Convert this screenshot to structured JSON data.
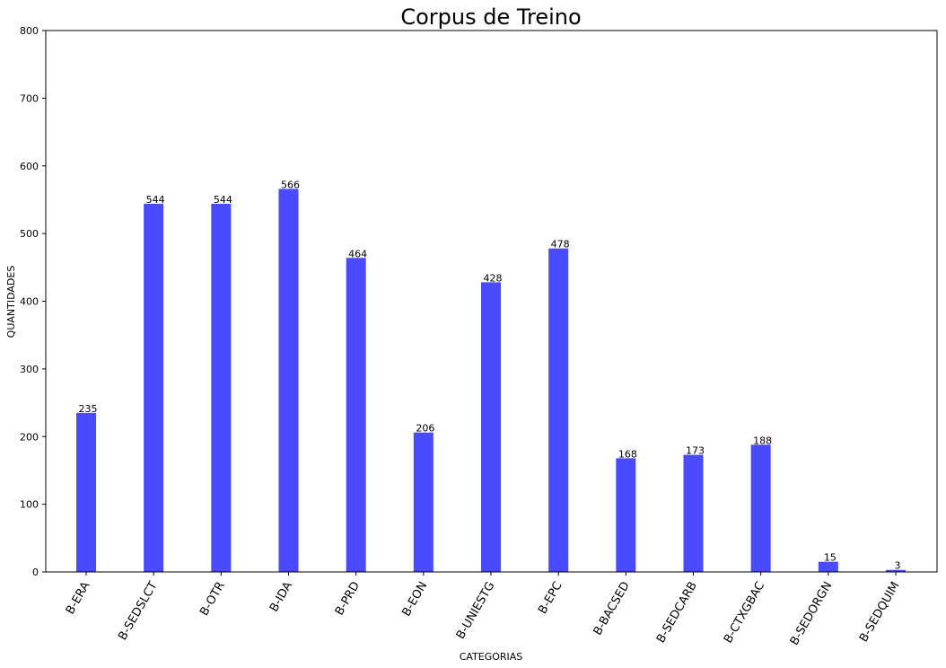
{
  "chart_data": {
    "type": "bar",
    "title": "Corpus de Treino",
    "xlabel": "CATEGORIAS",
    "ylabel": "QUANTIDADES",
    "ylim": [
      0,
      800
    ],
    "yticks": [
      0,
      100,
      200,
      300,
      400,
      500,
      600,
      700,
      800
    ],
    "grid": false,
    "bar_color": "#4a4aff",
    "categories": [
      "B-ERA",
      "B-SEDSLCT",
      "B-OTR",
      "B-IDA",
      "B-PRD",
      "B-EON",
      "B-UNIESTG",
      "B-EPC",
      "B-BACSED",
      "B-SEDCARB",
      "B-CTXGBAC",
      "B-SEDORGN",
      "B-SEDQUIM"
    ],
    "values": [
      235,
      544,
      544,
      566,
      464,
      206,
      428,
      478,
      168,
      173,
      188,
      15,
      3
    ],
    "data_labels": [
      "235",
      "544",
      "544",
      "566",
      "464",
      "206",
      "428",
      "478",
      "168",
      "173",
      "188",
      "15",
      "3"
    ]
  }
}
